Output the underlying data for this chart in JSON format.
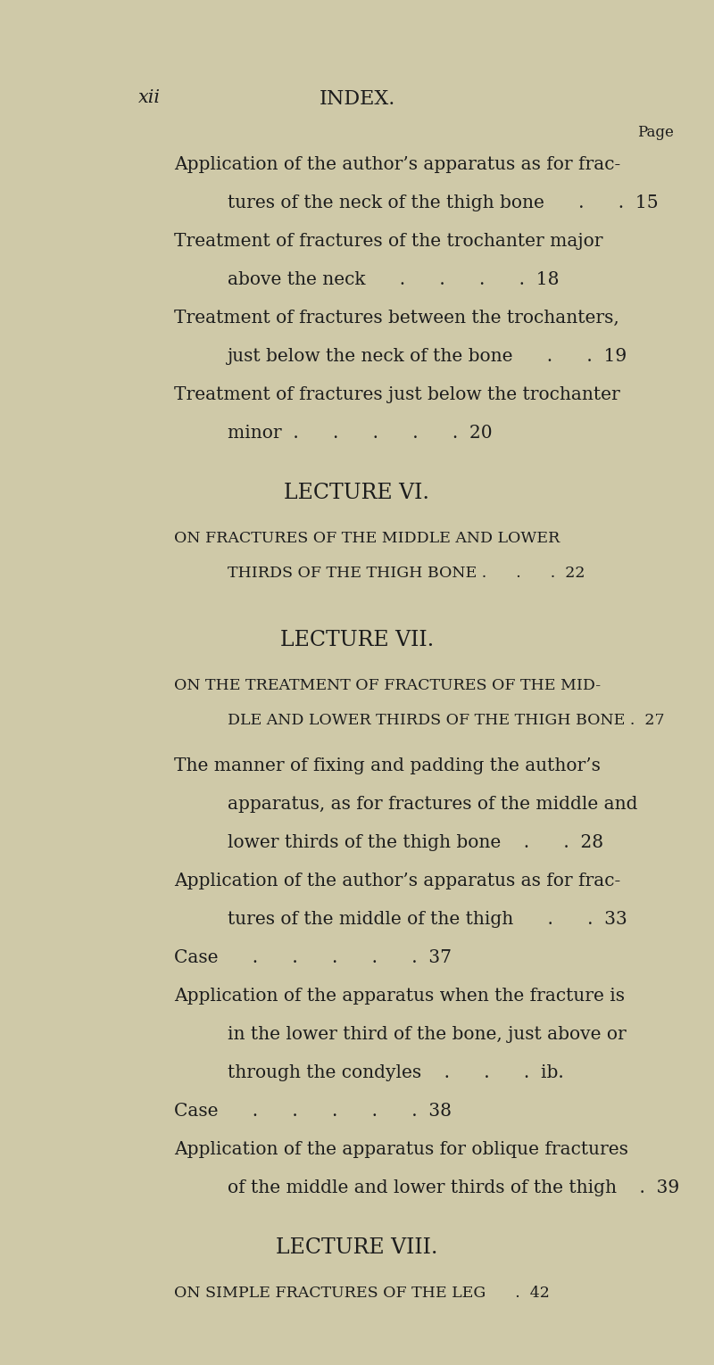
{
  "bg_color": "#cfc9a8",
  "text_color": "#1c1c1c",
  "fig_width": 8.0,
  "fig_height": 15.3,
  "dpi": 100,
  "page_label": "xii",
  "page_title": "INDEX.",
  "page_label_right": "Page",
  "entries": [
    {
      "type": "entry",
      "lines": [
        "Application of the author’s apparatus as for frac-",
        "tures of the neck of the thigh bone      .      .  15"
      ],
      "indents": [
        0,
        1
      ],
      "page": "15"
    },
    {
      "type": "entry",
      "lines": [
        "Treatment of fractures of the trochanter major",
        "above the neck      .      .      .      .  18"
      ],
      "indents": [
        0,
        1
      ],
      "page": "18"
    },
    {
      "type": "entry",
      "lines": [
        "Treatment of fractures between the trochanters,",
        "just below the neck of the bone      .      .  19"
      ],
      "indents": [
        0,
        1
      ],
      "page": "19"
    },
    {
      "type": "entry",
      "lines": [
        "Treatment of fractures just below the trochanter",
        "minor  .      .      .      .      .  20"
      ],
      "indents": [
        0,
        1
      ],
      "page": "20"
    },
    {
      "type": "lecture_heading",
      "text": "LECTURE VI."
    },
    {
      "type": "lecture_subheading",
      "lines": [
        "On fractures of the middle and lower",
        "thirds of the thigh bone .      .      .  22"
      ],
      "page": "22"
    },
    {
      "type": "lecture_heading",
      "text": "LECTURE VII."
    },
    {
      "type": "lecture_subheading",
      "lines": [
        "On the treatment of fractures of the mid-",
        "dle and lower thirds of the thigh bone .  27"
      ],
      "page": "27"
    },
    {
      "type": "entry",
      "lines": [
        "The manner of fixing and padding the author’s",
        "apparatus, as for fractures of the middle and",
        "lower thirds of the thigh bone    .      .  28"
      ],
      "indents": [
        0,
        1,
        1
      ],
      "page": "28"
    },
    {
      "type": "entry",
      "lines": [
        "Application of the author’s apparatus as for frac-",
        "tures of the middle of the thigh      .      .  33"
      ],
      "indents": [
        0,
        1
      ],
      "page": "33"
    },
    {
      "type": "entry",
      "lines": [
        "Case      .      .      .      .      .  37"
      ],
      "indents": [
        0
      ],
      "page": "37"
    },
    {
      "type": "entry",
      "lines": [
        "Application of the apparatus when the fracture is",
        "in the lower third of the bone, just above or",
        "through the condyles    .      .      .  ib."
      ],
      "indents": [
        0,
        1,
        1
      ],
      "page": "ib."
    },
    {
      "type": "entry",
      "lines": [
        "Case      .      .      .      .      .  38"
      ],
      "indents": [
        0
      ],
      "page": "38"
    },
    {
      "type": "entry",
      "lines": [
        "Application of the apparatus for oblique fractures",
        "of the middle and lower thirds of the thigh    .  39"
      ],
      "indents": [
        0,
        1
      ],
      "page": "39"
    },
    {
      "type": "lecture_heading",
      "text": "LECTURE VIII."
    },
    {
      "type": "lecture_subheading",
      "lines": [
        "On simple fractures of the leg      .  42"
      ],
      "page": "42"
    }
  ]
}
